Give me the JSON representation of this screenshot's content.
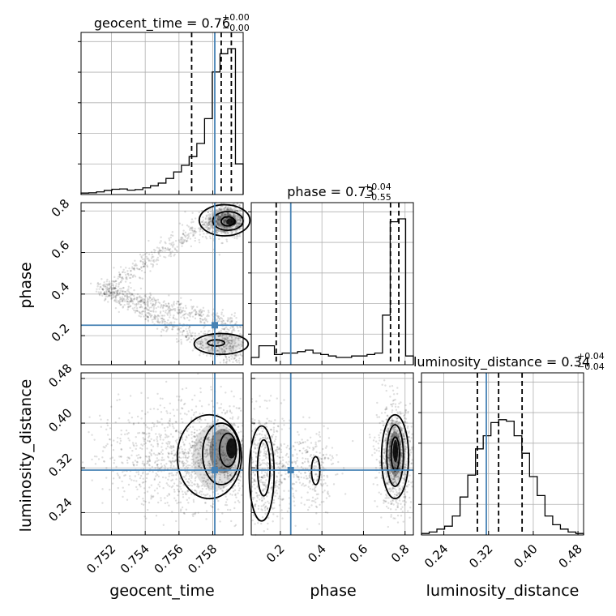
{
  "chart_data": {
    "type": "corner",
    "parameters": [
      {
        "name": "geocent_time",
        "label": "geocent_time",
        "range": [
          0.7502,
          0.7598
        ],
        "ticks": [
          "0.752",
          "0.754",
          "0.756",
          "0.758"
        ],
        "truth": 0.75812,
        "title": {
          "main": "geocent_time = 0.76",
          "sup": "+0.00",
          "sub": "−0.00"
        },
        "quantiles": [
          0.75675,
          0.7585,
          0.7591
        ]
      },
      {
        "name": "phase",
        "label": "phase",
        "range": [
          0.06,
          0.84
        ],
        "ticks": [
          "0.2",
          "0.4",
          "0.6",
          "0.8"
        ],
        "truth": 0.25,
        "title": {
          "main": "phase = 0.73",
          "sup": "+0.04",
          "sub": "−0.55"
        },
        "quantiles": [
          0.18,
          0.73,
          0.77
        ]
      },
      {
        "name": "luminosity_distance",
        "label": "luminosity_distance",
        "range": [
          0.2,
          0.49
        ],
        "ticks": [
          "0.24",
          "0.32",
          "0.40",
          "0.48"
        ],
        "truth": 0.316,
        "title": {
          "main": "luminosity_distance = 0.34",
          "sup": "+0.04",
          "sub": "−0.04"
        },
        "quantiles": [
          0.3,
          0.338,
          0.38
        ]
      }
    ],
    "histograms": {
      "geocent_time": [
        0.01,
        0.012,
        0.018,
        0.028,
        0.036,
        0.038,
        0.03,
        0.034,
        0.046,
        0.06,
        0.078,
        0.11,
        0.155,
        0.2,
        0.26,
        0.35,
        0.52,
        0.84,
        0.965,
        1.0,
        0.21
      ],
      "phase": [
        0.05,
        0.13,
        0.13,
        0.07,
        0.08,
        0.08,
        0.09,
        0.1,
        0.08,
        0.07,
        0.06,
        0.05,
        0.05,
        0.06,
        0.06,
        0.07,
        0.08,
        0.34,
        0.98,
        1.0,
        0.06
      ],
      "luminosity_distance": [
        0.01,
        0.02,
        0.04,
        0.06,
        0.13,
        0.26,
        0.41,
        0.59,
        0.68,
        0.77,
        0.79,
        0.78,
        0.68,
        0.56,
        0.4,
        0.27,
        0.13,
        0.07,
        0.04,
        0.02,
        0.01
      ]
    },
    "truth_color": "#4682b4",
    "grid": true
  }
}
